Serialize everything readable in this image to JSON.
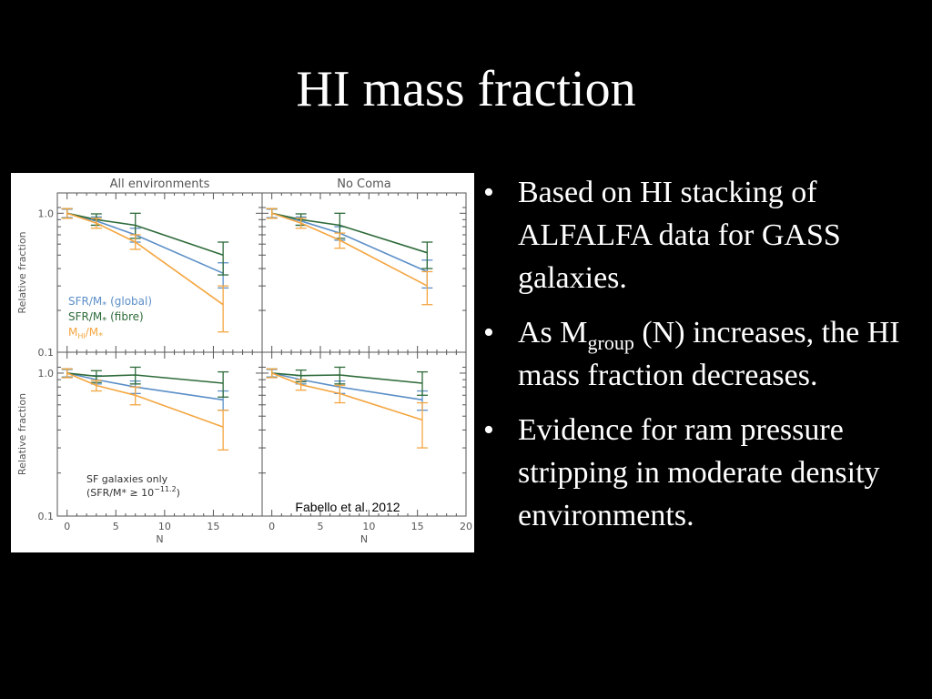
{
  "slide": {
    "title": "HI mass fraction",
    "bullet_char": "•",
    "bullets": [
      {
        "text": "Based on HI stacking of ALFALFA data for GASS galaxies."
      },
      {
        "pre": "As M",
        "sub": "group",
        "post": " (N) increases, the HI mass fraction decreases."
      },
      {
        "text": "Evidence for ram pressure stripping in moderate density environments."
      }
    ]
  },
  "chart_data": [
    {
      "type": "line",
      "panel": "top-left",
      "title": "All environments",
      "xlabel": "",
      "ylabel": "Relative fraction",
      "x": [
        0,
        3,
        7,
        16
      ],
      "xlim": [
        -1,
        20
      ],
      "ylim": [
        0.1,
        1.4
      ],
      "yscale": "log",
      "yticks": [
        "1.0",
        "0.1"
      ],
      "series": [
        {
          "name": "SFR/M* (global)",
          "color": "#5b8fc7",
          "values": [
            1.0,
            0.88,
            0.7,
            0.37
          ],
          "err_low": [
            0.93,
            0.82,
            0.62,
            0.29
          ],
          "err_high": [
            1.07,
            0.94,
            0.78,
            0.44
          ]
        },
        {
          "name": "SFR/M* (fibre)",
          "color": "#2e6b3a",
          "values": [
            1.0,
            0.9,
            0.82,
            0.5
          ],
          "err_low": [
            0.92,
            0.82,
            0.66,
            0.36
          ],
          "err_high": [
            1.08,
            0.99,
            1.0,
            0.62
          ]
        },
        {
          "name": "MHI/M*",
          "color": "#f4a641",
          "values": [
            1.0,
            0.85,
            0.62,
            0.22
          ],
          "err_low": [
            0.92,
            0.78,
            0.55,
            0.14
          ],
          "err_high": [
            1.08,
            0.92,
            0.7,
            0.3
          ]
        }
      ],
      "legend": {
        "placement": "bottom-left",
        "labels": [
          "SFR/M* (global)",
          "SFR/M* (fibre)",
          "MHI/M*"
        ]
      }
    },
    {
      "type": "line",
      "panel": "top-right",
      "title": "No Coma",
      "xlabel": "",
      "ylabel": "",
      "x": [
        0,
        3,
        7,
        16
      ],
      "xlim": [
        -1,
        20
      ],
      "ylim": [
        0.1,
        1.4
      ],
      "yscale": "log",
      "series": [
        {
          "name": "SFR/M* (global)",
          "color": "#5b8fc7",
          "values": [
            1.0,
            0.88,
            0.72,
            0.38
          ],
          "err_low": [
            0.93,
            0.82,
            0.64,
            0.29
          ],
          "err_high": [
            1.07,
            0.94,
            0.8,
            0.46
          ]
        },
        {
          "name": "SFR/M* (fibre)",
          "color": "#2e6b3a",
          "values": [
            1.0,
            0.9,
            0.82,
            0.52
          ],
          "err_low": [
            0.92,
            0.82,
            0.66,
            0.4
          ],
          "err_high": [
            1.08,
            0.99,
            1.0,
            0.62
          ]
        },
        {
          "name": "MHI/M*",
          "color": "#f4a641",
          "values": [
            1.0,
            0.85,
            0.64,
            0.3
          ],
          "err_low": [
            0.92,
            0.78,
            0.56,
            0.22
          ],
          "err_high": [
            1.08,
            0.92,
            0.72,
            0.38
          ]
        }
      ]
    },
    {
      "type": "line",
      "panel": "bottom-left",
      "title": "",
      "xlabel": "N",
      "ylabel": "Relative fraction",
      "x": [
        0,
        3,
        7,
        16
      ],
      "xlim": [
        -1,
        20
      ],
      "ylim": [
        0.1,
        1.4
      ],
      "yscale": "log",
      "xticks": [
        "0",
        "5",
        "10",
        "15"
      ],
      "yticks": [
        "1.0",
        "0.1"
      ],
      "series": [
        {
          "name": "SFR/M* (global)",
          "color": "#5b8fc7",
          "values": [
            1.0,
            0.9,
            0.8,
            0.65
          ],
          "err_low": [
            0.94,
            0.84,
            0.72,
            0.55
          ],
          "err_high": [
            1.06,
            0.96,
            0.88,
            0.75
          ]
        },
        {
          "name": "SFR/M* (fibre)",
          "color": "#2e6b3a",
          "values": [
            1.0,
            0.95,
            0.97,
            0.85
          ],
          "err_low": [
            0.93,
            0.86,
            0.84,
            0.68
          ],
          "err_high": [
            1.07,
            1.04,
            1.1,
            1.02
          ]
        },
        {
          "name": "MHI/M*",
          "color": "#f4a641",
          "values": [
            1.0,
            0.82,
            0.7,
            0.42
          ],
          "err_low": [
            0.93,
            0.75,
            0.6,
            0.29
          ],
          "err_high": [
            1.07,
            0.89,
            0.8,
            0.55
          ]
        }
      ],
      "annotation_lines": [
        "SF galaxies only",
        "(SFR/M* ≥ 10",
        "−11.2",
        ")"
      ]
    },
    {
      "type": "line",
      "panel": "bottom-right",
      "title": "",
      "xlabel": "N",
      "ylabel": "",
      "x": [
        0,
        3,
        7,
        15.5
      ],
      "xlim": [
        -1,
        20
      ],
      "ylim": [
        0.1,
        1.4
      ],
      "yscale": "log",
      "xticks": [
        "0",
        "5",
        "10",
        "15",
        "20"
      ],
      "series": [
        {
          "name": "SFR/M* (global)",
          "color": "#5b8fc7",
          "values": [
            1.0,
            0.9,
            0.8,
            0.65
          ],
          "err_low": [
            0.94,
            0.84,
            0.72,
            0.55
          ],
          "err_high": [
            1.06,
            0.96,
            0.88,
            0.75
          ]
        },
        {
          "name": "SFR/M* (fibre)",
          "color": "#2e6b3a",
          "values": [
            1.0,
            0.96,
            0.97,
            0.85
          ],
          "err_low": [
            0.93,
            0.87,
            0.84,
            0.7
          ],
          "err_high": [
            1.07,
            1.05,
            1.1,
            1.02
          ]
        },
        {
          "name": "MHI/M*",
          "color": "#f4a641",
          "values": [
            1.0,
            0.83,
            0.72,
            0.47
          ],
          "err_low": [
            0.93,
            0.76,
            0.62,
            0.3
          ],
          "err_high": [
            1.07,
            0.9,
            0.82,
            0.62
          ]
        }
      ],
      "annotation": "Fabello et al. 2012"
    }
  ]
}
